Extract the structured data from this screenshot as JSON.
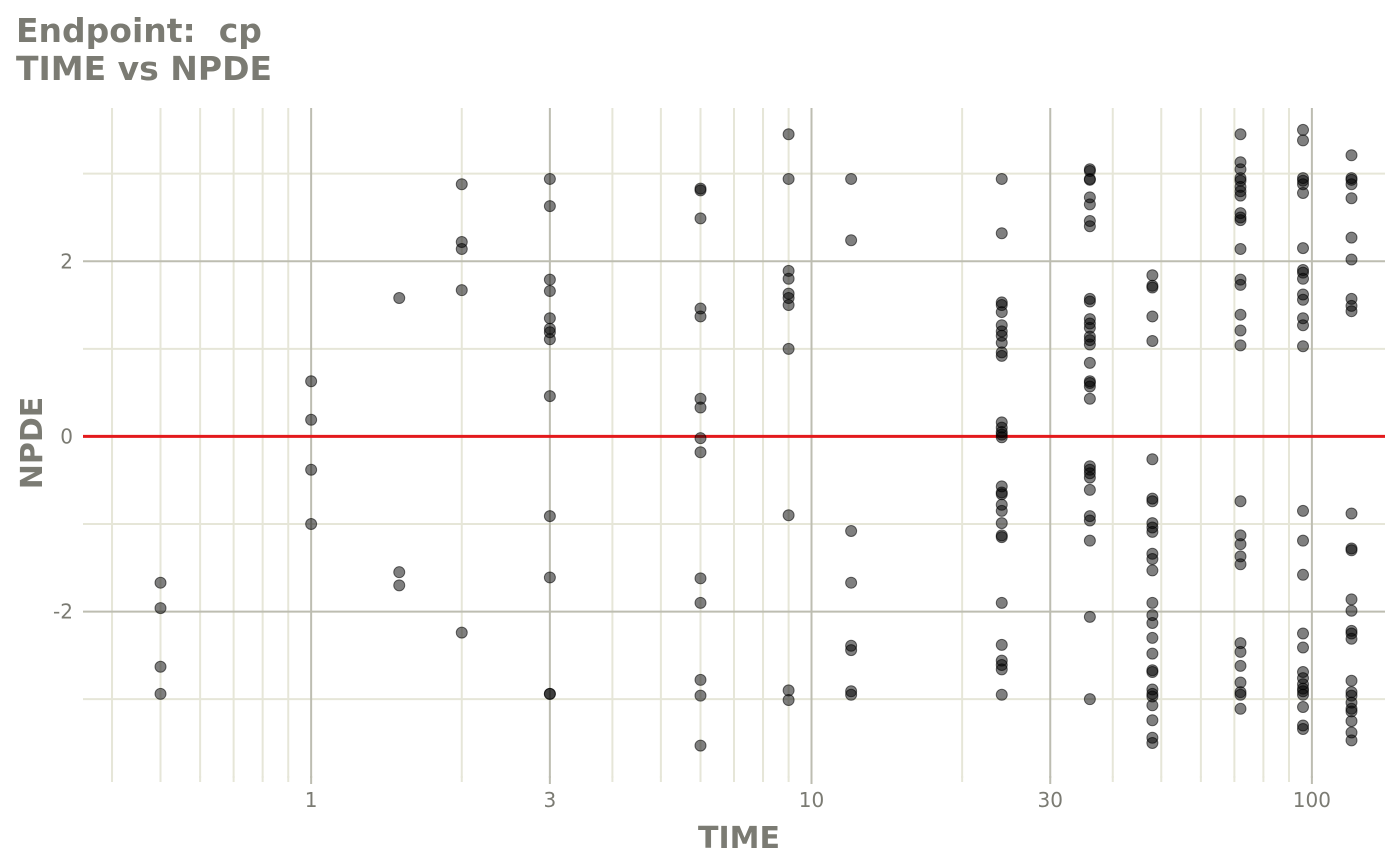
{
  "title": {
    "line1": "Endpoint:  cp",
    "line2": "TIME vs NPDE"
  },
  "chart_data": {
    "type": "scatter",
    "xlabel": "TIME",
    "ylabel": "NPDE",
    "x_scale": "log10",
    "xlim": [
      0.35,
      140
    ],
    "ylim": [
      -3.9,
      3.75
    ],
    "x_ticks": [
      1,
      3,
      10,
      30,
      100
    ],
    "x_tick_labels": [
      "1",
      "3",
      "10",
      "30",
      "100"
    ],
    "y_ticks": [
      -2,
      0,
      2
    ],
    "y_tick_labels": [
      "-2",
      "0",
      "2"
    ],
    "reference_line": {
      "y": 0,
      "color": "#e31a1c"
    },
    "grid": true,
    "colors": {
      "points": "#000000",
      "major_grid": "#bdbdb1",
      "minor_grid": "#e6e6d8",
      "text": "#7b7b73"
    },
    "points": [
      [
        0.5,
        -1.67
      ],
      [
        0.5,
        -1.96
      ],
      [
        0.5,
        -2.63
      ],
      [
        0.5,
        -2.94
      ],
      [
        1,
        0.63
      ],
      [
        1,
        0.19
      ],
      [
        1,
        -0.38
      ],
      [
        1,
        -1.0
      ],
      [
        1.5,
        1.58
      ],
      [
        1.5,
        -1.55
      ],
      [
        1.5,
        -1.7
      ],
      [
        2,
        2.88
      ],
      [
        2,
        2.22
      ],
      [
        2,
        2.14
      ],
      [
        2,
        1.67
      ],
      [
        2,
        -2.24
      ],
      [
        3,
        2.94
      ],
      [
        3,
        2.63
      ],
      [
        3,
        1.79
      ],
      [
        3,
        1.66
      ],
      [
        3,
        1.35
      ],
      [
        3,
        1.23
      ],
      [
        3,
        1.19
      ],
      [
        3,
        1.11
      ],
      [
        3,
        0.46
      ],
      [
        3,
        -0.91
      ],
      [
        3,
        -1.61
      ],
      [
        3,
        -2.94
      ],
      [
        3,
        -2.94
      ],
      [
        6,
        2.83
      ],
      [
        6,
        2.81
      ],
      [
        6,
        2.49
      ],
      [
        6,
        1.46
      ],
      [
        6,
        1.37
      ],
      [
        6,
        0.43
      ],
      [
        6,
        0.33
      ],
      [
        6,
        -0.02
      ],
      [
        6,
        -0.18
      ],
      [
        6,
        -1.62
      ],
      [
        6,
        -1.9
      ],
      [
        6,
        -2.78
      ],
      [
        6,
        -2.96
      ],
      [
        6,
        -3.53
      ],
      [
        9,
        3.45
      ],
      [
        9,
        2.94
      ],
      [
        9,
        1.89
      ],
      [
        9,
        1.8
      ],
      [
        9,
        1.63
      ],
      [
        9,
        1.58
      ],
      [
        9,
        1.5
      ],
      [
        9,
        1.0
      ],
      [
        9,
        -0.9
      ],
      [
        9,
        -2.9
      ],
      [
        9,
        -3.01
      ],
      [
        12,
        2.94
      ],
      [
        12,
        2.24
      ],
      [
        12,
        -1.08
      ],
      [
        12,
        -1.67
      ],
      [
        12,
        -2.39
      ],
      [
        12,
        -2.44
      ],
      [
        12,
        -2.91
      ],
      [
        12,
        -2.95
      ],
      [
        24,
        2.94
      ],
      [
        24,
        2.32
      ],
      [
        24,
        1.53
      ],
      [
        24,
        1.5
      ],
      [
        24,
        1.42
      ],
      [
        24,
        1.27
      ],
      [
        24,
        1.2
      ],
      [
        24,
        1.15
      ],
      [
        24,
        1.07
      ],
      [
        24,
        0.96
      ],
      [
        24,
        0.92
      ],
      [
        24,
        0.16
      ],
      [
        24,
        0.1
      ],
      [
        24,
        0.05
      ],
      [
        24,
        0.02
      ],
      [
        24,
        -0.01
      ],
      [
        24,
        -0.57
      ],
      [
        24,
        -0.64
      ],
      [
        24,
        -0.66
      ],
      [
        24,
        -0.78
      ],
      [
        24,
        -0.85
      ],
      [
        24,
        -0.99
      ],
      [
        24,
        -1.13
      ],
      [
        24,
        -1.15
      ],
      [
        24,
        -1.9
      ],
      [
        24,
        -2.38
      ],
      [
        24,
        -2.56
      ],
      [
        24,
        -2.61
      ],
      [
        24,
        -2.66
      ],
      [
        24,
        -2.95
      ],
      [
        36,
        3.05
      ],
      [
        36,
        3.03
      ],
      [
        36,
        2.94
      ],
      [
        36,
        2.93
      ],
      [
        36,
        2.73
      ],
      [
        36,
        2.65
      ],
      [
        36,
        2.46
      ],
      [
        36,
        2.4
      ],
      [
        36,
        1.57
      ],
      [
        36,
        1.54
      ],
      [
        36,
        1.34
      ],
      [
        36,
        1.29
      ],
      [
        36,
        1.24
      ],
      [
        36,
        1.14
      ],
      [
        36,
        1.1
      ],
      [
        36,
        1.05
      ],
      [
        36,
        0.84
      ],
      [
        36,
        0.63
      ],
      [
        36,
        0.61
      ],
      [
        36,
        0.57
      ],
      [
        36,
        0.43
      ],
      [
        36,
        -0.34
      ],
      [
        36,
        -0.38
      ],
      [
        36,
        -0.42
      ],
      [
        36,
        -0.47
      ],
      [
        36,
        -0.61
      ],
      [
        36,
        -0.91
      ],
      [
        36,
        -0.96
      ],
      [
        36,
        -1.19
      ],
      [
        36,
        -2.06
      ],
      [
        36,
        -3.0
      ],
      [
        48,
        1.84
      ],
      [
        48,
        1.72
      ],
      [
        48,
        1.7
      ],
      [
        48,
        1.37
      ],
      [
        48,
        1.09
      ],
      [
        48,
        -0.26
      ],
      [
        48,
        -0.71
      ],
      [
        48,
        -0.74
      ],
      [
        48,
        -0.99
      ],
      [
        48,
        -1.04
      ],
      [
        48,
        -1.09
      ],
      [
        48,
        -1.34
      ],
      [
        48,
        -1.4
      ],
      [
        48,
        -1.53
      ],
      [
        48,
        -1.9
      ],
      [
        48,
        -2.04
      ],
      [
        48,
        -2.13
      ],
      [
        48,
        -2.3
      ],
      [
        48,
        -2.48
      ],
      [
        48,
        -2.67
      ],
      [
        48,
        -2.69
      ],
      [
        48,
        -2.89
      ],
      [
        48,
        -2.94
      ],
      [
        48,
        -2.97
      ],
      [
        48,
        -3.07
      ],
      [
        48,
        -3.24
      ],
      [
        48,
        -3.44
      ],
      [
        48,
        -3.5
      ],
      [
        72,
        3.45
      ],
      [
        72,
        3.13
      ],
      [
        72,
        3.05
      ],
      [
        72,
        2.95
      ],
      [
        72,
        2.92
      ],
      [
        72,
        2.85
      ],
      [
        72,
        2.8
      ],
      [
        72,
        2.75
      ],
      [
        72,
        2.55
      ],
      [
        72,
        2.5
      ],
      [
        72,
        2.47
      ],
      [
        72,
        2.14
      ],
      [
        72,
        1.79
      ],
      [
        72,
        1.73
      ],
      [
        72,
        1.39
      ],
      [
        72,
        1.21
      ],
      [
        72,
        1.04
      ],
      [
        72,
        -0.74
      ],
      [
        72,
        -1.13
      ],
      [
        72,
        -1.23
      ],
      [
        72,
        -1.37
      ],
      [
        72,
        -1.46
      ],
      [
        72,
        -2.36
      ],
      [
        72,
        -2.46
      ],
      [
        72,
        -2.62
      ],
      [
        72,
        -2.81
      ],
      [
        72,
        -2.92
      ],
      [
        72,
        -2.95
      ],
      [
        72,
        -3.11
      ],
      [
        96,
        3.5
      ],
      [
        96,
        3.38
      ],
      [
        96,
        2.95
      ],
      [
        96,
        2.92
      ],
      [
        96,
        2.88
      ],
      [
        96,
        2.78
      ],
      [
        96,
        2.15
      ],
      [
        96,
        1.9
      ],
      [
        96,
        1.87
      ],
      [
        96,
        1.8
      ],
      [
        96,
        1.62
      ],
      [
        96,
        1.56
      ],
      [
        96,
        1.35
      ],
      [
        96,
        1.27
      ],
      [
        96,
        1.03
      ],
      [
        96,
        -0.85
      ],
      [
        96,
        -1.19
      ],
      [
        96,
        -1.58
      ],
      [
        96,
        -2.25
      ],
      [
        96,
        -2.41
      ],
      [
        96,
        -2.69
      ],
      [
        96,
        -2.76
      ],
      [
        96,
        -2.83
      ],
      [
        96,
        -2.88
      ],
      [
        96,
        -2.91
      ],
      [
        96,
        -2.95
      ],
      [
        96,
        -3.09
      ],
      [
        96,
        -3.3
      ],
      [
        96,
        -3.34
      ],
      [
        120,
        3.21
      ],
      [
        120,
        2.95
      ],
      [
        120,
        2.93
      ],
      [
        120,
        2.88
      ],
      [
        120,
        2.72
      ],
      [
        120,
        2.27
      ],
      [
        120,
        2.02
      ],
      [
        120,
        1.57
      ],
      [
        120,
        1.49
      ],
      [
        120,
        1.43
      ],
      [
        120,
        -0.88
      ],
      [
        120,
        -1.28
      ],
      [
        120,
        -1.3
      ],
      [
        120,
        -1.86
      ],
      [
        120,
        -1.99
      ],
      [
        120,
        -2.22
      ],
      [
        120,
        -2.25
      ],
      [
        120,
        -2.31
      ],
      [
        120,
        -2.79
      ],
      [
        120,
        -2.92
      ],
      [
        120,
        -2.96
      ],
      [
        120,
        -3.04
      ],
      [
        120,
        -3.11
      ],
      [
        120,
        -3.14
      ],
      [
        120,
        -3.25
      ],
      [
        120,
        -3.38
      ],
      [
        120,
        -3.47
      ]
    ]
  }
}
